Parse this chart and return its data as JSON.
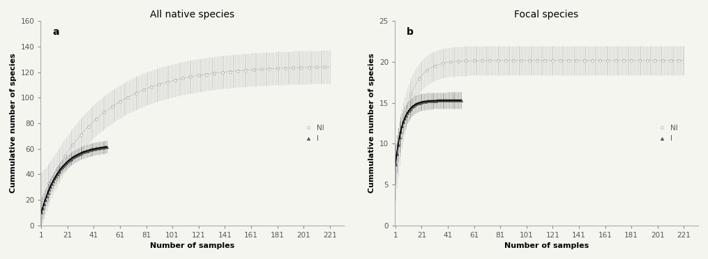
{
  "panel_a": {
    "title": "All native species",
    "label": "a",
    "xlabel": "Number of samples",
    "ylabel": "Cummulative number of species",
    "ylim": [
      0,
      160
    ],
    "yticks": [
      0,
      20,
      40,
      60,
      80,
      100,
      120,
      140,
      160
    ],
    "xticks": [
      1,
      21,
      41,
      61,
      81,
      101,
      121,
      141,
      161,
      181,
      201,
      221
    ],
    "xlim": [
      0.5,
      232
    ],
    "NI": {
      "color": "#b0b0b0",
      "marker": "o",
      "max_samples": 221,
      "asymptote": 125,
      "rate": 0.022,
      "start_y": 20,
      "ci_plateau": 13,
      "ci_peak": 22,
      "label": "NI"
    },
    "I": {
      "color": "#555555",
      "marker": "^",
      "max_samples": 51,
      "asymptote": 63,
      "rate": 0.07,
      "start_y": 10,
      "ci_plateau": 5,
      "ci_peak": 10,
      "label": "I"
    }
  },
  "panel_b": {
    "title": "Focal species",
    "label": "b",
    "xlabel": "Number of samples",
    "ylabel": "Cummulative number of species",
    "ylim": [
      0,
      25
    ],
    "yticks": [
      0,
      5,
      10,
      15,
      20,
      25
    ],
    "xticks": [
      1,
      21,
      41,
      61,
      81,
      101,
      121,
      141,
      161,
      181,
      201,
      221
    ],
    "xlim": [
      0.5,
      232
    ],
    "NI": {
      "color": "#b0b0b0",
      "marker": "o",
      "max_samples": 221,
      "asymptote": 20.2,
      "rate": 0.1,
      "start_y": 6.5,
      "ci_plateau": 1.8,
      "ci_peak": 3.5,
      "label": "NI"
    },
    "I": {
      "color": "#555555",
      "marker": "^",
      "max_samples": 51,
      "asymptote": 15.3,
      "rate": 0.18,
      "start_y": 7.5,
      "ci_plateau": 1.0,
      "ci_peak": 2.5,
      "label": "I"
    }
  },
  "background_color": "#f5f5f0",
  "legend_fontsize": 7.5,
  "title_fontsize": 10,
  "axis_label_fontsize": 8,
  "tick_fontsize": 7.5
}
